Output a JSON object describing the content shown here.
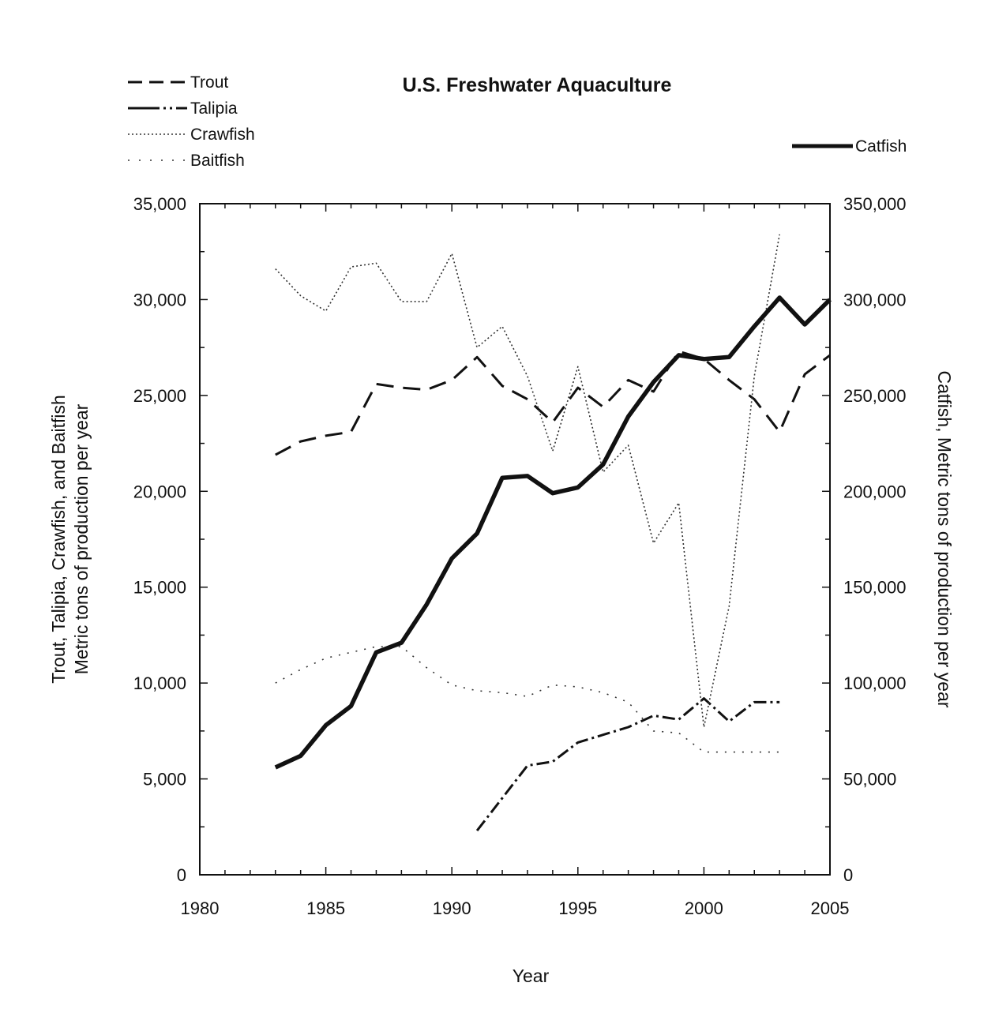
{
  "chart_data": {
    "type": "line",
    "title": "U.S. Freshwater Aquaculture",
    "xlabel": "Year",
    "ylabel_left": [
      "Trout, Talipia, Crawfish, and Baitfish",
      "Metric tons of production per year"
    ],
    "ylabel_right": "Catfish, Metric tons of production per year",
    "xlim": [
      1980,
      2005
    ],
    "ylim_left": [
      0,
      35000
    ],
    "ylim_right": [
      0,
      350000
    ],
    "x_ticks": [
      "1980",
      "1985",
      "1990",
      "1995",
      "2000",
      "2005"
    ],
    "y_ticks_left": [
      "0",
      "5,000",
      "10,000",
      "15,000",
      "20,000",
      "25,000",
      "30,000",
      "35,000"
    ],
    "y_ticks_right": [
      "0",
      "50,000",
      "100,000",
      "150,000",
      "200,000",
      "250,000",
      "300,000",
      "350,000"
    ],
    "grid": false,
    "legend": [
      {
        "label": "Trout",
        "style": "dashed"
      },
      {
        "label": "Talipia",
        "style": "dash-dot"
      },
      {
        "label": "Crawfish",
        "style": "dotted"
      },
      {
        "label": "Baitfish",
        "style": "sparse-dotted"
      },
      {
        "label": "Catfish",
        "style": "thick-solid"
      }
    ],
    "series": [
      {
        "name": "Trout",
        "axis": "left",
        "style": "dashed",
        "x": [
          1983,
          1984,
          1985,
          1986,
          1987,
          1988,
          1989,
          1990,
          1991,
          1992,
          1993,
          1994,
          1995,
          1996,
          1997,
          1998,
          1999,
          2000,
          2001,
          2002,
          2003,
          2004,
          2005
        ],
        "values": [
          21900,
          22600,
          22900,
          23100,
          25600,
          25400,
          25300,
          25800,
          27000,
          25500,
          24800,
          23600,
          25400,
          24400,
          25800,
          25200,
          27300,
          26900,
          25800,
          24800,
          23100,
          26100,
          27100
        ]
      },
      {
        "name": "Talipia",
        "axis": "left",
        "style": "dash-dot",
        "x": [
          1991,
          1992,
          1993,
          1994,
          1995,
          1996,
          1997,
          1998,
          1999,
          2000,
          2001,
          2002,
          2003
        ],
        "values": [
          2300,
          4000,
          5700,
          5900,
          6900,
          7300,
          7700,
          8300,
          8100,
          9200,
          8000,
          9000,
          9000
        ]
      },
      {
        "name": "Crawfish",
        "axis": "left",
        "style": "dotted",
        "x": [
          1983,
          1984,
          1985,
          1986,
          1987,
          1988,
          1989,
          1990,
          1991,
          1992,
          1993,
          1994,
          1995,
          1996,
          1997,
          1998,
          1999,
          2000,
          2001,
          2002,
          2003
        ],
        "values": [
          31600,
          30200,
          29400,
          31700,
          31900,
          29900,
          29900,
          32400,
          27500,
          28600,
          26000,
          22100,
          26500,
          21000,
          22400,
          17300,
          19400,
          7700,
          14000,
          26000,
          33400
        ]
      },
      {
        "name": "Baitfish",
        "axis": "left",
        "style": "sparse-dotted",
        "x": [
          1983,
          1984,
          1985,
          1986,
          1987,
          1988,
          1989,
          1990,
          1991,
          1992,
          1993,
          1994,
          1995,
          1996,
          1997,
          1998,
          1999,
          2000,
          2001,
          2002,
          2003
        ],
        "values": [
          10000,
          10700,
          11300,
          11600,
          11900,
          11900,
          10800,
          9900,
          9600,
          9500,
          9300,
          9900,
          9800,
          9500,
          9000,
          7500,
          7400,
          6400,
          6400,
          6400,
          6400
        ]
      },
      {
        "name": "Catfish",
        "axis": "right",
        "style": "thick-solid",
        "x": [
          1983,
          1984,
          1985,
          1986,
          1987,
          1988,
          1989,
          1990,
          1991,
          1992,
          1993,
          1994,
          1995,
          1996,
          1997,
          1998,
          1999,
          2000,
          2001,
          2002,
          2003,
          2004,
          2005
        ],
        "values": [
          56000,
          62000,
          78000,
          88000,
          116000,
          121000,
          141000,
          165000,
          178000,
          207000,
          208000,
          199000,
          202000,
          214000,
          239000,
          257000,
          271000,
          269000,
          270000,
          286000,
          301000,
          287000,
          300000
        ]
      }
    ]
  }
}
